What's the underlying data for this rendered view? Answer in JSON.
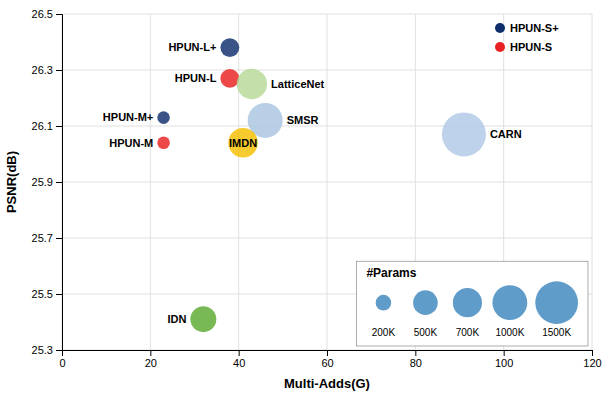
{
  "chart_data": {
    "type": "bubble",
    "xlabel": "Multi-Adds(G)",
    "ylabel": "PSNR(dB)",
    "labels": [
      "HPUN-L+",
      "HPUN-L",
      "LatticeNet",
      "SMSR",
      "IMDN",
      "HPUN-M+",
      "HPUN-M",
      "CARN",
      "IDN"
    ],
    "x": [
      38,
      38,
      43,
      46,
      41,
      23,
      23,
      91,
      32
    ],
    "values": [
      26.38,
      26.27,
      26.25,
      26.12,
      26.04,
      26.13,
      26.04,
      26.07,
      25.41
    ],
    "sizes": [
      294,
      294,
      756,
      1006,
      715,
      130,
      130,
      1592,
      553
    ],
    "colors": [
      "#0d2d6b",
      "#e82020",
      "#b8d898",
      "#aac4e0",
      "#f5c000",
      "#0d2d6b",
      "#e82020",
      "#b0c8e8",
      "#5aaa30"
    ],
    "annotations": [
      {
        "text": "HPUN-S+",
        "color": "#0d2d6b"
      },
      {
        "text": "HPUN-S",
        "color": "#e82020"
      }
    ],
    "size_ref": {
      "title": "#Params",
      "values": [
        200,
        500,
        700,
        1000,
        1500
      ],
      "labels": [
        "200K",
        "500K",
        "700K",
        "1000K",
        "1500K"
      ],
      "color": "#4a8ec2"
    },
    "xlim": [
      0,
      120
    ],
    "ylim": [
      25.3,
      26.5
    ],
    "xticks": [
      0,
      20,
      40,
      60,
      80,
      100,
      120
    ],
    "yticks": [
      25.3,
      25.5,
      25.7,
      25.9,
      26.1,
      26.3,
      26.5
    ],
    "grid": true
  }
}
